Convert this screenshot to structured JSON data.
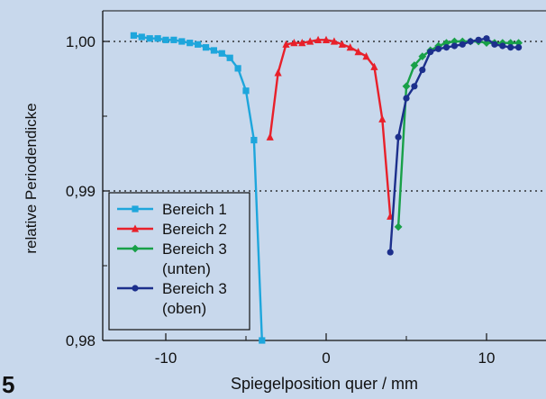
{
  "figure_number": "5",
  "colors": {
    "background": "#c8d8ec",
    "series": [
      "#1ea6dc",
      "#e8202a",
      "#18a048",
      "#1c2f8c"
    ]
  },
  "chart_data": {
    "type": "line",
    "xlabel": "Spiegelposition quer / mm",
    "ylabel": "relative Periodendicke",
    "xlim": [
      -14,
      14
    ],
    "ylim": [
      0.98,
      1.0025
    ],
    "x_ticks": [
      -10,
      0,
      10
    ],
    "x_tick_labels": [
      "-10",
      "0",
      "10"
    ],
    "y_ticks": [
      0.98,
      0.99,
      1.0
    ],
    "y_tick_labels": [
      "0,98",
      "0,99",
      "1,00"
    ],
    "reference_lines": [
      0.99,
      1.0
    ],
    "grid": false,
    "legend_position": "bottom-left",
    "series": [
      {
        "name": "Bereich 1",
        "marker": "square",
        "color": "#1ea6dc",
        "x": [
          -12.0,
          -11.5,
          -11.0,
          -10.5,
          -10.0,
          -9.5,
          -9.0,
          -8.5,
          -8.0,
          -7.5,
          -7.0,
          -6.5,
          -6.0,
          -5.5,
          -5.0,
          -4.5,
          -4.0
        ],
        "y": [
          1.0004,
          1.0003,
          1.0002,
          1.0002,
          1.0001,
          1.0001,
          1.0,
          0.9999,
          0.9998,
          0.9996,
          0.9994,
          0.9992,
          0.9989,
          0.9982,
          0.9967,
          0.9934,
          0.98
        ]
      },
      {
        "name": "Bereich 2",
        "marker": "triangle",
        "color": "#e8202a",
        "x": [
          -3.5,
          -3.0,
          -2.5,
          -2.0,
          -1.5,
          -1.0,
          -0.5,
          0.0,
          0.5,
          1.0,
          1.5,
          2.0,
          2.5,
          3.0,
          3.5,
          4.0
        ],
        "y": [
          0.9936,
          0.9979,
          0.9998,
          0.9999,
          0.9999,
          1.0,
          1.0001,
          1.0001,
          1.0,
          0.9998,
          0.9996,
          0.9993,
          0.999,
          0.9983,
          0.9948,
          0.9883
        ]
      },
      {
        "name": "Bereich 3 (unten)",
        "marker": "diamond",
        "color": "#18a048",
        "x": [
          4.5,
          5.0,
          5.5,
          6.0,
          6.5,
          7.0,
          7.5,
          8.0,
          8.5,
          9.0,
          9.5,
          10.0,
          10.5,
          11.0,
          11.5,
          12.0
        ],
        "y": [
          0.9876,
          0.997,
          0.9984,
          0.999,
          0.9994,
          0.9997,
          0.9999,
          1.0,
          1.0,
          1.0,
          1.0,
          0.9999,
          0.9999,
          0.9999,
          0.9999,
          0.9999
        ]
      },
      {
        "name": "Bereich 3 (oben)",
        "marker": "circle",
        "color": "#1c2f8c",
        "x": [
          4.0,
          4.5,
          5.0,
          5.5,
          6.0,
          6.5,
          7.0,
          7.5,
          8.0,
          8.5,
          9.0,
          9.5,
          10.0,
          10.5,
          11.0,
          11.5,
          12.0
        ],
        "y": [
          0.9859,
          0.9936,
          0.9962,
          0.997,
          0.9981,
          0.9993,
          0.9995,
          0.9996,
          0.9997,
          0.9998,
          1.0,
          1.0001,
          1.0002,
          0.9998,
          0.9997,
          0.9996,
          0.9996
        ]
      }
    ],
    "legend_entries": [
      {
        "lines": [
          "Bereich 1"
        ],
        "series_index": 0
      },
      {
        "lines": [
          "Bereich 2"
        ],
        "series_index": 1
      },
      {
        "lines": [
          "Bereich 3",
          "(unten)"
        ],
        "series_index": 2
      },
      {
        "lines": [
          "Bereich 3",
          "(oben)"
        ],
        "series_index": 3
      }
    ]
  }
}
